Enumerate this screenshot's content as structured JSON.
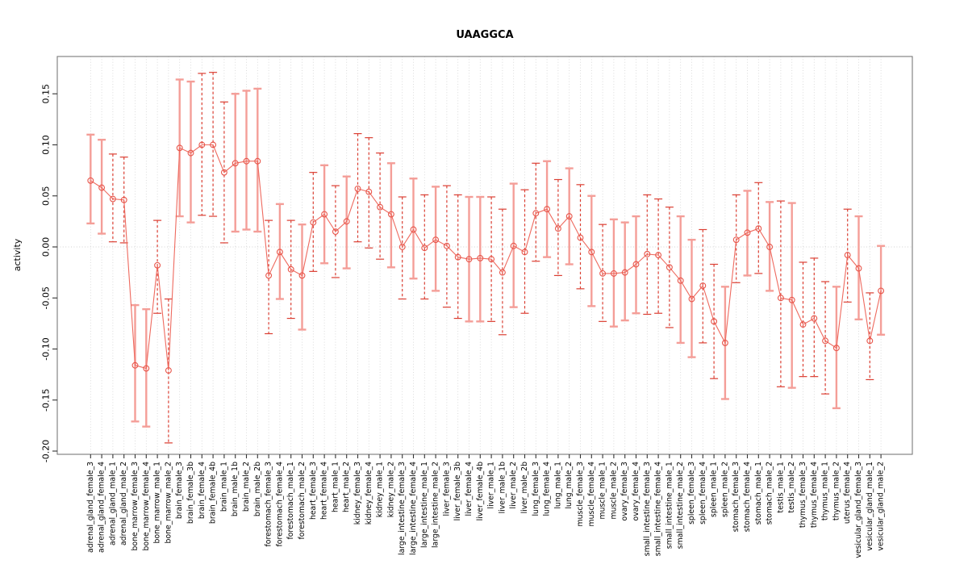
{
  "chart_data": {
    "type": "scatter",
    "subtype": "error-bar-plot",
    "title": "UAAGGCA",
    "xlabel": "",
    "ylabel": "activity",
    "ylim": [
      -0.203,
      0.187
    ],
    "ytick_labels": [
      "-0.20",
      "-0.15",
      "-0.10",
      "-0.05",
      "0.00",
      "0.05",
      "0.10",
      "0.15"
    ],
    "grid": "vertical dotted gridline per category, dotted horizontal line at zero",
    "legend_position": "none",
    "categories": [
      "adrenal_gland_female_3",
      "adrenal_gland_female_4",
      "adrenal_gland_male_1",
      "adrenal_gland_male_2",
      "bone_marrow_female_3",
      "bone_marrow_female_4",
      "bone_marrow_male_1",
      "bone_marrow_male_2",
      "brain_female_3",
      "brain_female_3b",
      "brain_female_4",
      "brain_female_4b",
      "brain_male_1",
      "brain_male_1b",
      "brain_male_2",
      "brain_male_2b",
      "forestomach_female_3",
      "forestomach_female_4",
      "forestomach_male_1",
      "forestomach_male_2",
      "heart_female_3",
      "heart_female_4",
      "heart_male_1",
      "heart_male_2",
      "kidney_female_3",
      "kidney_female_4",
      "kidney_male_1",
      "kidney_male_2",
      "large_intestine_female_3",
      "large_intestine_female_4",
      "large_intestine_male_1",
      "large_intestine_male_2",
      "liver_female_3",
      "liver_female_3b",
      "liver_female_4",
      "liver_female_4b",
      "liver_male_1",
      "liver_male_1b",
      "liver_male_2",
      "liver_male_2b",
      "lung_female_3",
      "lung_female_4",
      "lung_male_1",
      "lung_male_2",
      "muscle_female_3",
      "muscle_female_4",
      "muscle_male_1",
      "muscle_male_2",
      "ovary_female_3",
      "ovary_female_4",
      "small_intestine_female_3",
      "small_intestine_female_4",
      "small_intestine_male_1",
      "small_intestine_male_2",
      "spleen_female_3",
      "spleen_female_4",
      "spleen_male_1",
      "spleen_male_2",
      "stomach_female_3",
      "stomach_female_4",
      "stomach_male_1",
      "stomach_male_2",
      "testis_male_1",
      "testis_male_2",
      "thymus_female_3",
      "thymus_female_4",
      "thymus_male_1",
      "thymus_male_2",
      "uterus_female_4",
      "vesicular_gland_female_3",
      "vesicular_gland_male_1",
      "vesicular_gland_male_2"
    ],
    "series": [
      {
        "name": "activity",
        "values": [
          0.065,
          0.058,
          0.047,
          0.046,
          -0.116,
          -0.119,
          -0.018,
          -0.121,
          0.097,
          0.092,
          0.1,
          0.1,
          0.073,
          0.082,
          0.084,
          0.084,
          -0.028,
          -0.005,
          -0.022,
          -0.028,
          0.024,
          0.032,
          0.015,
          0.025,
          0.057,
          0.054,
          0.039,
          0.032,
          0.0,
          0.017,
          -0.001,
          0.007,
          0.001,
          -0.01,
          -0.012,
          -0.011,
          -0.012,
          -0.025,
          0.001,
          -0.005,
          0.033,
          0.037,
          0.018,
          0.03,
          0.009,
          -0.005,
          -0.026,
          -0.026,
          -0.025,
          -0.017,
          -0.007,
          -0.008,
          -0.02,
          -0.033,
          -0.051,
          -0.038,
          -0.073,
          -0.094,
          0.007,
          0.014,
          0.018,
          0.0,
          -0.05,
          -0.052,
          -0.076,
          -0.07,
          -0.092,
          -0.099,
          -0.008,
          -0.021,
          -0.092,
          -0.043
        ],
        "err_low": [
          0.023,
          0.013,
          0.005,
          0.004,
          -0.171,
          -0.176,
          -0.065,
          -0.192,
          0.03,
          0.024,
          0.031,
          0.03,
          0.004,
          0.015,
          0.017,
          0.015,
          -0.085,
          -0.051,
          -0.07,
          -0.081,
          -0.024,
          -0.016,
          -0.03,
          -0.021,
          0.005,
          -0.001,
          -0.012,
          -0.02,
          -0.051,
          -0.031,
          -0.051,
          -0.043,
          -0.059,
          -0.07,
          -0.073,
          -0.073,
          -0.073,
          -0.086,
          -0.059,
          -0.065,
          -0.014,
          -0.01,
          -0.028,
          -0.017,
          -0.041,
          -0.058,
          -0.073,
          -0.078,
          -0.072,
          -0.065,
          -0.066,
          -0.065,
          -0.079,
          -0.094,
          -0.108,
          -0.094,
          -0.129,
          -0.149,
          -0.035,
          -0.028,
          -0.026,
          -0.043,
          -0.137,
          -0.138,
          -0.127,
          -0.127,
          -0.144,
          -0.158,
          -0.054,
          -0.071,
          -0.13,
          -0.086
        ],
        "err_high": [
          0.11,
          0.105,
          0.091,
          0.088,
          -0.057,
          -0.061,
          0.026,
          -0.051,
          0.164,
          0.162,
          0.17,
          0.171,
          0.142,
          0.15,
          0.153,
          0.155,
          0.026,
          0.042,
          0.026,
          0.022,
          0.073,
          0.08,
          0.06,
          0.069,
          0.111,
          0.107,
          0.092,
          0.082,
          0.049,
          0.067,
          0.051,
          0.059,
          0.06,
          0.051,
          0.049,
          0.049,
          0.049,
          0.037,
          0.062,
          0.056,
          0.082,
          0.084,
          0.066,
          0.077,
          0.061,
          0.05,
          0.022,
          0.027,
          0.024,
          0.03,
          0.051,
          0.047,
          0.039,
          0.03,
          0.007,
          0.017,
          -0.017,
          -0.039,
          0.051,
          0.055,
          0.063,
          0.044,
          0.045,
          0.043,
          -0.015,
          -0.011,
          -0.034,
          -0.039,
          0.037,
          0.03,
          -0.045,
          0.001
        ],
        "bar_styles": [
          "s",
          "s",
          "d",
          "d",
          "s",
          "s",
          "d",
          "d",
          "s",
          "s",
          "d",
          "d",
          "d",
          "s",
          "s",
          "s",
          "d",
          "s",
          "d",
          "s",
          "d",
          "s",
          "d",
          "s",
          "d",
          "d",
          "d",
          "s",
          "d",
          "s",
          "d",
          "s",
          "d",
          "d",
          "s",
          "s",
          "d",
          "d",
          "s",
          "d",
          "d",
          "s",
          "d",
          "s",
          "d",
          "s",
          "d",
          "s",
          "s",
          "s",
          "d",
          "d",
          "d",
          "s",
          "s",
          "d",
          "d",
          "s",
          "d",
          "s",
          "d",
          "s",
          "d",
          "s",
          "d",
          "d",
          "d",
          "s",
          "d",
          "s",
          "d",
          "s"
        ]
      }
    ],
    "colors": {
      "solid_bar": "#F49E98",
      "dashed_bar": "#DB3F33",
      "series_line": "#EE6A5F",
      "marker": "#E8564B",
      "grid": "#d2d2d2",
      "box": "#7a7a7a",
      "tick": "#333333"
    }
  }
}
